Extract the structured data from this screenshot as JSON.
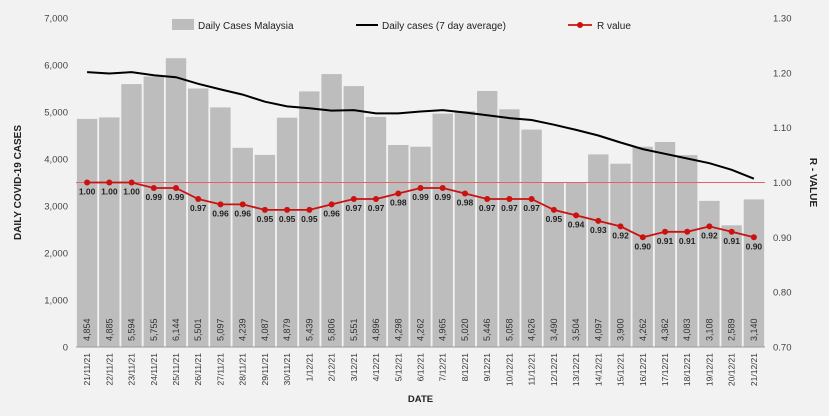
{
  "chart_data": {
    "type": "bar",
    "xlabel": "DATE",
    "ylabel_left": "DAILY COVID-19 CASES",
    "ylabel_right": "R - VALUE",
    "ylim_left": [
      0,
      7000
    ],
    "ylim_right": [
      0.7,
      1.3
    ],
    "yticks_left": [
      "0",
      "1,000",
      "2,000",
      "3,000",
      "4,000",
      "5,000",
      "6,000",
      "7,000"
    ],
    "yticks_right": [
      "0.70",
      "0.80",
      "0.90",
      "1.00",
      "1.10",
      "1.20",
      "1.30"
    ],
    "reference_line_r": 1.0,
    "categories": [
      "21/11/21",
      "22/11/21",
      "23/11/21",
      "24/11/21",
      "25/11/21",
      "26/11/21",
      "27/11/21",
      "28/11/21",
      "29/11/21",
      "30/11/21",
      "1/12/21",
      "2/12/21",
      "3/12/21",
      "4/12/21",
      "5/12/21",
      "6/12/21",
      "7/12/21",
      "8/12/21",
      "9/12/21",
      "10/12/21",
      "11/12/21",
      "12/12/21",
      "13/12/21",
      "14/12/21",
      "15/12/21",
      "16/12/21",
      "17/12/21",
      "18/12/21",
      "19/12/21",
      "20/12/21",
      "21/12/21"
    ],
    "series": [
      {
        "name": "Daily Cases Malaysia",
        "type": "bar",
        "axis": "left",
        "color": "#bdbdbd",
        "values": [
          4854,
          4885,
          5594,
          5755,
          6144,
          5501,
          5097,
          4239,
          4087,
          4879,
          5439,
          5806,
          5551,
          4896,
          4298,
          4262,
          4965,
          5020,
          5446,
          5058,
          4626,
          3490,
          3504,
          4097,
          3900,
          4262,
          4362,
          4083,
          3108,
          2589,
          3140
        ],
        "labels": [
          "4,854",
          "4,885",
          "5,594",
          "5,755",
          "6,144",
          "5,501",
          "5,097",
          "4,239",
          "4,087",
          "4,879",
          "5,439",
          "5,806",
          "5,551",
          "4,896",
          "4,298",
          "4,262",
          "4,965",
          "5,020",
          "5,446",
          "5,058",
          "4,626",
          "3,490",
          "3,504",
          "4,097",
          "3,900",
          "4,262",
          "4,362",
          "4,083",
          "3,108",
          "2,589",
          "3,140"
        ]
      },
      {
        "name": "Daily cases (7 day average)",
        "type": "line",
        "axis": "left",
        "color": "#000000",
        "values": [
          5850,
          5820,
          5850,
          5780,
          5740,
          5600,
          5480,
          5370,
          5220,
          5120,
          5080,
          5030,
          5040,
          4970,
          4970,
          5010,
          5040,
          4990,
          4930,
          4870,
          4830,
          4730,
          4620,
          4500,
          4350,
          4210,
          4110,
          4010,
          3910,
          3770,
          3580
        ]
      },
      {
        "name": "R value",
        "type": "line-markers",
        "axis": "right",
        "color": "#cc1111",
        "values": [
          1.0,
          1.0,
          1.0,
          0.99,
          0.99,
          0.97,
          0.96,
          0.96,
          0.95,
          0.95,
          0.95,
          0.96,
          0.97,
          0.97,
          0.98,
          0.99,
          0.99,
          0.98,
          0.97,
          0.97,
          0.97,
          0.95,
          0.94,
          0.93,
          0.92,
          0.9,
          0.91,
          0.91,
          0.92,
          0.91,
          0.9
        ],
        "labels": [
          "1.00",
          "1.00",
          "1.00",
          "0.99",
          "0.99",
          "0.97",
          "0.96",
          "0.96",
          "0.95",
          "0.95",
          "0.95",
          "0.96",
          "0.97",
          "0.97",
          "0.98",
          "0.99",
          "0.99",
          "0.98",
          "0.97",
          "0.97",
          "0.97",
          "0.95",
          "0.94",
          "0.93",
          "0.92",
          "0.90",
          "0.91",
          "0.91",
          "0.92",
          "0.91",
          "0.90"
        ]
      }
    ],
    "legend_placement": "top",
    "grid": false
  }
}
